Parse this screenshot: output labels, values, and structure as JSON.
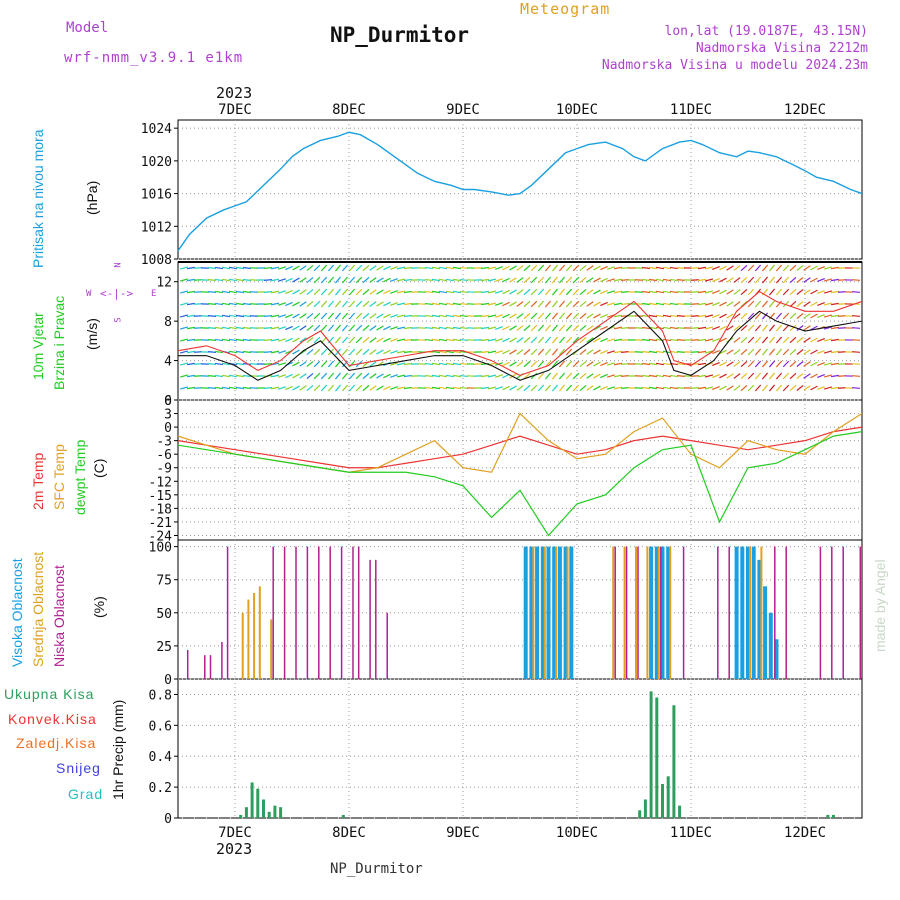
{
  "header": {
    "model_label": "Model",
    "model_name": "wrf-nmm_v3.9.1 e1km",
    "title": "NP_Durmitor",
    "meteogram": "Meteogram",
    "coords": "lon,lat (19.0187E, 43.15N)",
    "elevation": "Nadmorska Visina 2212m",
    "model_elevation": "Nadmorska Visina u modelu 2024.23m",
    "footer": "NP_Durmitor",
    "credit": "made by Angel",
    "year": "2023"
  },
  "colors": {
    "pressure": "#1aa0e0",
    "temp2m": "#ee3333",
    "sfc_temp": "#e0a020",
    "dewpoint": "#22cc22",
    "cloud_high": "#1aa0e0",
    "cloud_mid": "#e0a020",
    "cloud_low": "#b0208f",
    "precip_total": "#2e9e5e",
    "precip_conv": "#ee3333",
    "precip_frz": "#f07020",
    "snow": "#4040e0",
    "grad": "#20c0c0",
    "magenta": "#b040d0"
  },
  "x_axis": {
    "day_labels": [
      "7DEC",
      "8DEC",
      "9DEC",
      "10DEC",
      "11DEC",
      "12DEC"
    ],
    "day_positions": [
      7,
      8,
      9,
      10,
      11,
      12
    ],
    "range": [
      6.5,
      12.5
    ]
  },
  "panels": {
    "pressure": {
      "label": "Pritisak na nivou mora",
      "unit": "(hPa)",
      "ticks": [
        "1024",
        "1020",
        "1016",
        "1012",
        "1008"
      ]
    },
    "wind": {
      "label1": "10m Vjetar",
      "label2": "Brzina i Pravac",
      "unit": "(m/s)",
      "ticks": [
        "12",
        "8",
        "4",
        "0"
      ],
      "compass_n": "N",
      "compass_s": "S",
      "compass_w": "W",
      "compass_e": "E"
    },
    "temp": {
      "label1": "2m Temp",
      "label2": "SFC Temp",
      "label3": "dewpt Temp",
      "unit": "(C)",
      "ticks": [
        "6",
        "3",
        "0",
        "-3",
        "-6",
        "-9",
        "-12",
        "-15",
        "-18",
        "-21",
        "-24"
      ]
    },
    "cloud": {
      "label1": "Visoka Oblacnost",
      "label2": "Srednja Oblacnost",
      "label3": "Niska Oblacnost",
      "unit": "(%)",
      "ticks": [
        "100",
        "75",
        "50",
        "25",
        "0"
      ]
    },
    "precip": {
      "unit": "1hr Precip (mm)",
      "ticks": [
        "0.8",
        "0.6",
        "0.4",
        "0.2",
        "0"
      ],
      "legend": [
        "Ukupna Kisa",
        "Konvek.Kisa",
        "Zaledj.Kisa",
        "Snijeg",
        "Grad"
      ]
    }
  },
  "chart_data": [
    {
      "type": "line",
      "title": "Pritisak na nivou mora",
      "ylabel": "(hPa)",
      "ylim": [
        1008,
        1025
      ],
      "series": [
        {
          "name": "Pritisak na nivou mora",
          "x": [
            6.5,
            6.6,
            6.75,
            6.9,
            7.0,
            7.1,
            7.25,
            7.4,
            7.5,
            7.6,
            7.75,
            7.9,
            8.0,
            8.1,
            8.25,
            8.4,
            8.5,
            8.6,
            8.75,
            8.9,
            9.0,
            9.1,
            9.25,
            9.4,
            9.5,
            9.6,
            9.75,
            9.9,
            10.0,
            10.1,
            10.25,
            10.4,
            10.5,
            10.6,
            10.75,
            10.9,
            11.0,
            11.1,
            11.25,
            11.4,
            11.5,
            11.6,
            11.75,
            11.9,
            12.0,
            12.1,
            12.25,
            12.4,
            12.5
          ],
          "values": [
            1009,
            1011,
            1013,
            1014,
            1014.5,
            1015,
            1017,
            1019,
            1020.5,
            1021.5,
            1022.5,
            1023,
            1023.5,
            1023.2,
            1022,
            1020.5,
            1019.5,
            1018.5,
            1017.5,
            1017,
            1016.5,
            1016.5,
            1016.2,
            1015.8,
            1016,
            1017,
            1019,
            1021,
            1021.5,
            1022,
            1022.3,
            1021.5,
            1020.5,
            1020,
            1021.5,
            1022.3,
            1022.5,
            1022,
            1021,
            1020.5,
            1021.2,
            1021,
            1020.5,
            1019.5,
            1018.8,
            1018,
            1017.5,
            1016.5,
            1016
          ]
        }
      ]
    },
    {
      "type": "line",
      "title": "10m Vjetar Brzina i Pravac",
      "ylabel": "(m/s)",
      "ylim": [
        0,
        14
      ],
      "series": [
        {
          "name": "wind speed",
          "x": [
            6.5,
            6.75,
            7.0,
            7.2,
            7.4,
            7.6,
            7.75,
            8.0,
            8.25,
            8.5,
            8.75,
            9.0,
            9.25,
            9.5,
            9.75,
            10.0,
            10.25,
            10.5,
            10.75,
            10.85,
            11.0,
            11.2,
            11.4,
            11.6,
            11.75,
            12.0,
            12.25,
            12.5
          ],
          "values": [
            4.5,
            4.5,
            3.5,
            2,
            3,
            5,
            6,
            3,
            3.5,
            4,
            4.5,
            4.5,
            3.5,
            2,
            3,
            5,
            7,
            9,
            6,
            3,
            2.5,
            4,
            7,
            9,
            8,
            7,
            7.5,
            8
          ]
        },
        {
          "name": "wind gust",
          "x": [
            6.5,
            6.75,
            7.0,
            7.2,
            7.4,
            7.6,
            7.75,
            8.0,
            8.25,
            8.5,
            8.75,
            9.0,
            9.25,
            9.5,
            9.75,
            10.0,
            10.25,
            10.5,
            10.75,
            10.85,
            11.0,
            11.2,
            11.4,
            11.6,
            11.75,
            12.0,
            12.25,
            12.5
          ],
          "values": [
            5,
            5.5,
            4.5,
            3,
            4,
            6,
            7,
            3.5,
            4,
            4.5,
            5,
            5,
            4,
            2.5,
            3.5,
            6,
            8,
            10,
            7,
            4,
            3.5,
            5,
            9,
            11,
            10,
            9,
            9,
            10
          ]
        }
      ]
    },
    {
      "type": "line",
      "title": "Temperature",
      "ylabel": "(C)",
      "ylim": [
        -25,
        6
      ],
      "series": [
        {
          "name": "2m Temp",
          "x": [
            6.5,
            6.75,
            7.0,
            7.25,
            7.5,
            7.75,
            8.0,
            8.25,
            8.5,
            8.75,
            9.0,
            9.25,
            9.5,
            9.75,
            10.0,
            10.25,
            10.5,
            10.75,
            11.0,
            11.25,
            11.5,
            11.75,
            12.0,
            12.25,
            12.5
          ],
          "values": [
            -3,
            -4,
            -5,
            -6,
            -7,
            -8,
            -9,
            -9,
            -8,
            -7,
            -6,
            -4,
            -2,
            -4,
            -6,
            -5,
            -3,
            -2,
            -3,
            -4,
            -5,
            -4,
            -3,
            -1,
            0
          ]
        },
        {
          "name": "SFC Temp",
          "x": [
            6.5,
            6.75,
            7.0,
            7.25,
            7.5,
            7.75,
            8.0,
            8.25,
            8.5,
            8.75,
            9.0,
            9.25,
            9.5,
            9.75,
            10.0,
            10.25,
            10.5,
            10.75,
            11.0,
            11.25,
            11.5,
            11.75,
            12.0,
            12.25,
            12.5
          ],
          "values": [
            -2,
            -4,
            -6,
            -7,
            -8,
            -9,
            -10,
            -9,
            -6,
            -3,
            -9,
            -10,
            3,
            -3,
            -7,
            -6,
            -1,
            2,
            -6,
            -9,
            -3,
            -5,
            -6,
            -1,
            3
          ]
        },
        {
          "name": "dewpt Temp",
          "x": [
            6.5,
            6.75,
            7.0,
            7.25,
            7.5,
            7.75,
            8.0,
            8.25,
            8.5,
            8.75,
            9.0,
            9.25,
            9.5,
            9.75,
            10.0,
            10.25,
            10.5,
            10.75,
            11.0,
            11.25,
            11.5,
            11.75,
            12.0,
            12.25,
            12.5
          ],
          "values": [
            -4,
            -5,
            -6,
            -7,
            -8,
            -9,
            -10,
            -10,
            -10,
            -11,
            -13,
            -20,
            -14,
            -24,
            -17,
            -15,
            -9,
            -5,
            -4,
            -21,
            -9,
            -8,
            -5,
            -2,
            -1
          ]
        }
      ]
    },
    {
      "type": "bar",
      "title": "Oblacnost",
      "ylabel": "(%)",
      "ylim": [
        0,
        100
      ],
      "series": [
        {
          "name": "Visoka Oblacnost",
          "x": [
            9.55,
            9.6,
            9.65,
            9.7,
            9.75,
            9.8,
            9.85,
            9.9,
            9.95,
            10.65,
            10.7,
            10.75,
            10.8,
            11.4,
            11.45,
            11.5,
            11.55,
            11.6,
            11.65,
            11.7,
            11.75
          ],
          "values": [
            100,
            100,
            100,
            100,
            100,
            100,
            100,
            100,
            100,
            100,
            100,
            100,
            100,
            100,
            100,
            100,
            100,
            90,
            70,
            50,
            30
          ]
        },
        {
          "name": "Srednja Oblacnost",
          "x": [
            7.05,
            7.1,
            7.15,
            7.2,
            7.3,
            9.6,
            9.7,
            9.8,
            9.9,
            10.3,
            10.4,
            10.5,
            10.6,
            10.7,
            10.8,
            11.5,
            11.6
          ],
          "values": [
            50,
            60,
            65,
            70,
            45,
            100,
            100,
            100,
            100,
            100,
            100,
            100,
            100,
            100,
            100,
            100,
            100
          ]
        },
        {
          "name": "Niska Oblacnost",
          "x": [
            6.55,
            6.7,
            6.75,
            6.85,
            6.9,
            7.3,
            7.4,
            7.5,
            7.6,
            7.7,
            7.8,
            7.9,
            8.0,
            8.05,
            8.15,
            8.2,
            8.3,
            10.3,
            10.4,
            10.5,
            10.7,
            10.9,
            11.2,
            11.3,
            11.7,
            11.8,
            12.1,
            12.2,
            12.3,
            12.45
          ],
          "values": [
            22,
            18,
            18,
            28,
            100,
            100,
            100,
            100,
            100,
            100,
            100,
            100,
            100,
            100,
            90,
            90,
            50,
            100,
            100,
            100,
            100,
            100,
            100,
            100,
            100,
            100,
            100,
            100,
            100,
            100
          ]
        }
      ]
    },
    {
      "type": "bar",
      "title": "1hr Precip",
      "ylabel": "1hr Precip (mm)",
      "ylim": [
        0,
        0.9
      ],
      "series": [
        {
          "name": "Ukupna Kisa",
          "x": [
            7.05,
            7.1,
            7.15,
            7.2,
            7.25,
            7.3,
            7.35,
            7.4,
            7.95,
            10.55,
            10.6,
            10.65,
            10.7,
            10.75,
            10.8,
            10.85,
            10.9,
            12.2,
            12.25
          ],
          "values": [
            0.02,
            0.07,
            0.23,
            0.19,
            0.12,
            0.04,
            0.08,
            0.07,
            0.02,
            0.05,
            0.12,
            0.82,
            0.78,
            0.22,
            0.27,
            0.73,
            0.08,
            0.02,
            0.02
          ]
        }
      ]
    }
  ]
}
